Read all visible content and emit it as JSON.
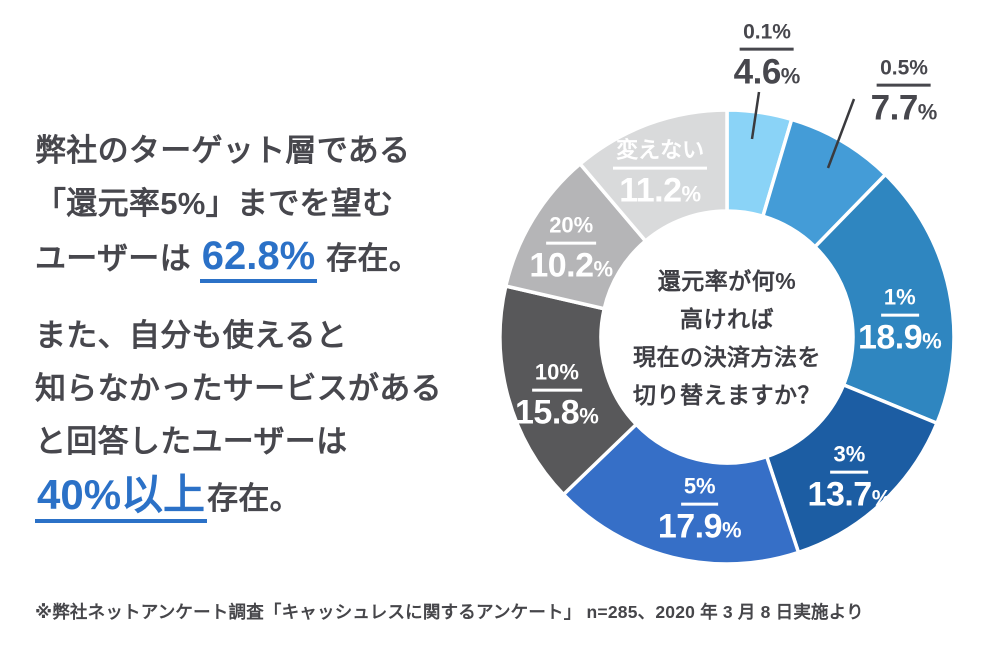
{
  "summary": {
    "para1": {
      "line1": "弊社のターゲット層である",
      "line2": "「還元率5%」までを望む",
      "line3_prefix": "ユーザーは ",
      "line3_highlight": "62.8%",
      "line3_suffix": " 存在。"
    },
    "para2": {
      "line1": "また、自分も使えると",
      "line2": "知らなかったサービスがある",
      "line3": "と回答したユーザーは",
      "line4_highlight": "40%以上",
      "line4_suffix": "存在。"
    }
  },
  "footnote": "※弊社ネットアンケート調査「キャッシュレスに関するアンケート」 n=285、2020 年 3 月 8 日実施より",
  "colors": {
    "text": "#47474d",
    "highlight_blue": "#2b71c7",
    "leader_line": "#3a3a3e",
    "slice_border": "#ffffff"
  },
  "chart_data": {
    "type": "pie",
    "subtype": "donut",
    "question": "還元率が何%高ければ現在の決済方法を切り替えますか？",
    "center_lines": [
      "還元率が何%",
      "高ければ",
      "現在の決済方法を",
      "切り替えますか？"
    ],
    "unit": "%",
    "start_angle_deg": 0,
    "direction": "clockwise",
    "legend_position": "none",
    "slices": [
      {
        "category": "0.1%",
        "value": 4.6,
        "color": "#8ad3f7",
        "label_outside": true
      },
      {
        "category": "0.5%",
        "value": 7.7,
        "color": "#449cd7",
        "label_outside": true
      },
      {
        "category": "1%",
        "value": 18.9,
        "color": "#2f86c0",
        "label_outside": false
      },
      {
        "category": "3%",
        "value": 13.7,
        "color": "#1c5da3",
        "label_outside": false
      },
      {
        "category": "5%",
        "value": 17.9,
        "color": "#366fc7",
        "label_outside": false
      },
      {
        "category": "10%",
        "value": 15.8,
        "color": "#58585a",
        "label_outside": false
      },
      {
        "category": "20%",
        "value": 10.2,
        "color": "#b5b5b7",
        "label_outside": false
      },
      {
        "category": "変えない",
        "value": 11.2,
        "color": "#d9dadb",
        "label_outside": false
      }
    ]
  }
}
